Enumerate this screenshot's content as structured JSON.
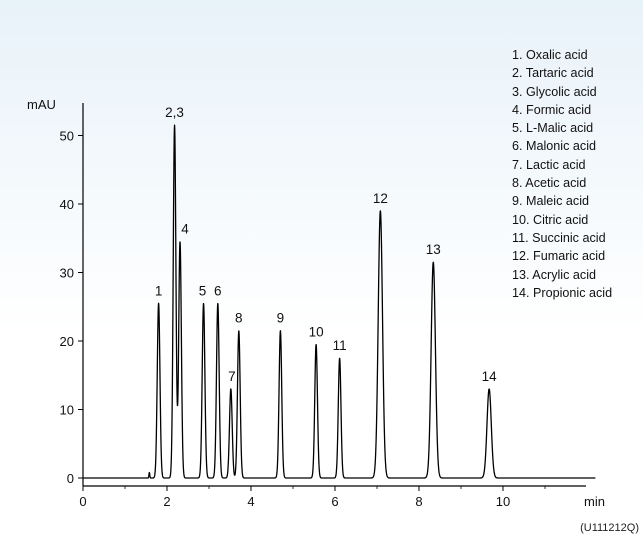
{
  "chart_data": {
    "type": "line",
    "title": "",
    "xlabel": "min",
    "ylabel": "mAU",
    "xlim": [
      0,
      12.5
    ],
    "ylim": [
      -1,
      55
    ],
    "x_ticks": [
      0,
      2,
      4,
      6,
      8,
      10
    ],
    "y_ticks": [
      0,
      10,
      20,
      30,
      40,
      50
    ],
    "baseline_onset_min": 1.45,
    "series": [
      {
        "peaks": [
          {
            "label": "1",
            "rt": 1.8,
            "height": 25.5
          },
          {
            "label": "2,3",
            "rt": 2.18,
            "height": 51.5
          },
          {
            "label": "4",
            "rt": 2.31,
            "height": 34.5
          },
          {
            "label": "5",
            "rt": 2.87,
            "height": 25.5
          },
          {
            "label": "6",
            "rt": 3.21,
            "height": 25.5
          },
          {
            "label": "7",
            "rt": 3.52,
            "height": 13.0
          },
          {
            "label": "8",
            "rt": 3.71,
            "height": 21.5
          },
          {
            "label": "9",
            "rt": 4.7,
            "height": 21.5
          },
          {
            "label": "10",
            "rt": 5.55,
            "height": 19.5
          },
          {
            "label": "11",
            "rt": 6.11,
            "height": 17.5
          },
          {
            "label": "12",
            "rt": 7.08,
            "height": 39.0
          },
          {
            "label": "13",
            "rt": 8.34,
            "height": 31.5
          },
          {
            "label": "14",
            "rt": 9.67,
            "height": 13.0
          }
        ]
      }
    ],
    "legend_position": "top-right",
    "legend": [
      "1. Oxalic acid",
      "2. Tartaric acid",
      "3. Glycolic acid",
      "4. Formic acid",
      "5. L-Malic acid",
      "6. Malonic acid",
      "7. Lactic acid",
      "8. Acetic acid",
      "9. Maleic acid",
      "10. Citric acid",
      "11. Succinic acid",
      "12. Fumaric acid",
      "13. Acrylic acid",
      "14. Propionic acid"
    ],
    "grid": false
  },
  "figure_code": "(U111212Q)",
  "colors": {
    "trace": "#000000",
    "background_top": "#e8f2f9",
    "background_bottom": "#ffffff"
  }
}
